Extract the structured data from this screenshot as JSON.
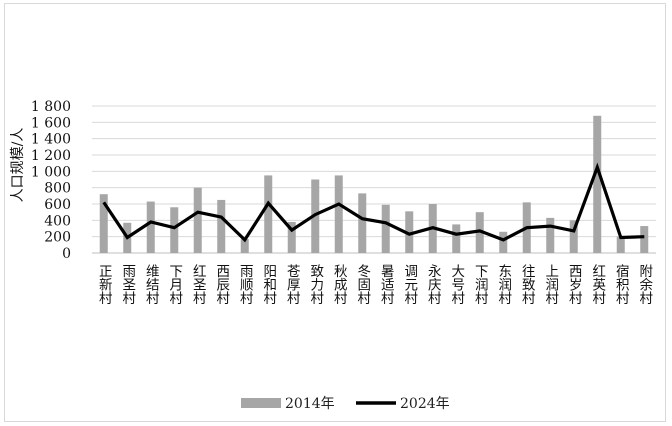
{
  "chart_data": {
    "type": "bar",
    "ylabel": "人口规模/人",
    "ylim": [
      0,
      1800
    ],
    "yticks": [
      "0",
      "200",
      "400",
      "600",
      "800",
      "1 000",
      "1 200",
      "1 400",
      "1 600",
      "1 800"
    ],
    "grid": true,
    "legend_position": "bottom",
    "categories": [
      "正新村",
      "雨圣村",
      "维结村",
      "下月村",
      "红圣村",
      "西辰村",
      "雨顺村",
      "阳和村",
      "苍厚村",
      "致力村",
      "秋成村",
      "冬固村",
      "暑适村",
      "调元村",
      "永庆村",
      "大号村",
      "下润村",
      "东润村",
      "往致村",
      "上润村",
      "西岁村",
      "红英村",
      "宿积村",
      "附余村"
    ],
    "series": [
      {
        "name": "2014年",
        "type": "bar",
        "color": "#a6a6a6",
        "values": [
          720,
          370,
          630,
          560,
          800,
          650,
          170,
          950,
          380,
          900,
          950,
          730,
          590,
          510,
          600,
          350,
          500,
          260,
          620,
          430,
          400,
          1680,
          200,
          330
        ]
      },
      {
        "name": "2024年",
        "type": "line",
        "color": "#000000",
        "values": [
          620,
          190,
          380,
          310,
          500,
          440,
          160,
          610,
          280,
          470,
          600,
          420,
          370,
          230,
          310,
          230,
          270,
          160,
          310,
          330,
          270,
          1050,
          190,
          200
        ]
      }
    ]
  }
}
